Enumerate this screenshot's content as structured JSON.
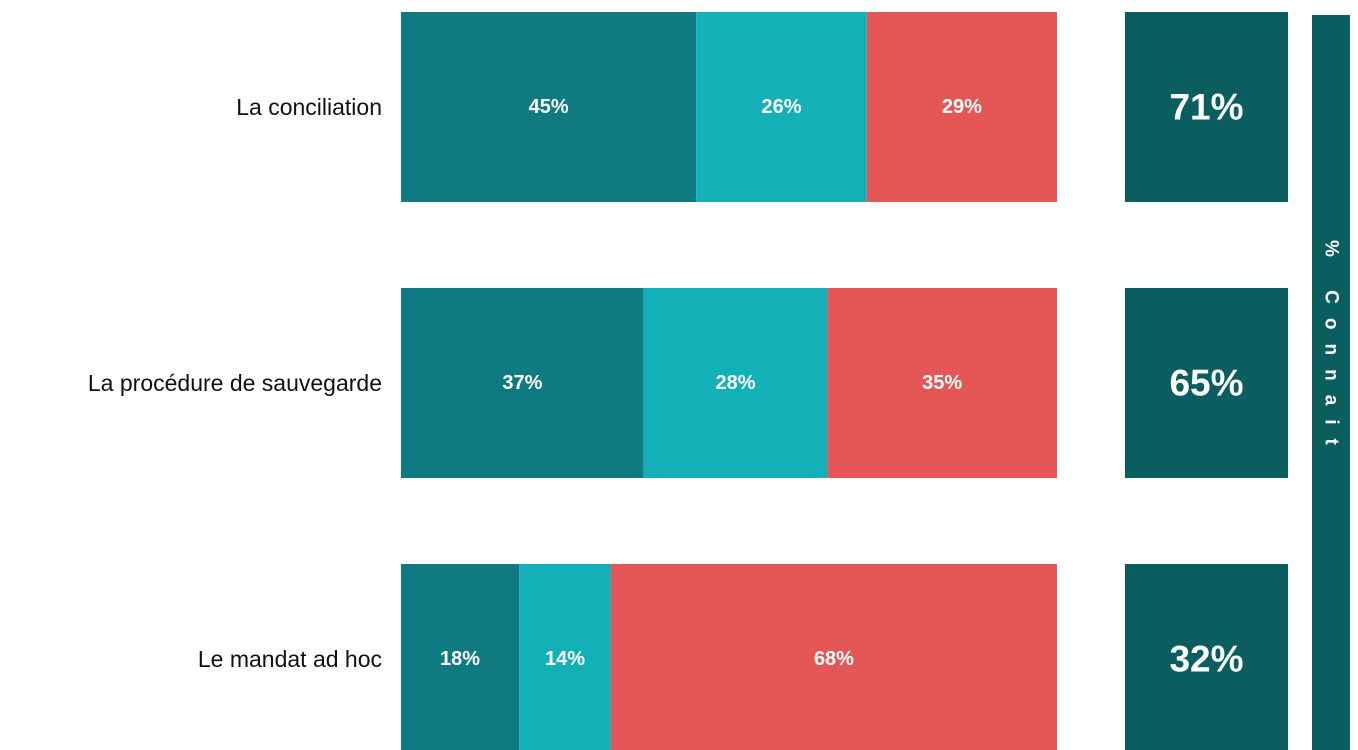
{
  "chart_data": {
    "type": "stacked-bar",
    "categories": [
      "La conciliation",
      "La procédure de sauvegarde",
      "Le mandat ad hoc"
    ],
    "series": [
      {
        "color": "#0f7a82",
        "values": [
          45,
          37,
          18
        ],
        "value_labels": [
          "45%",
          "37%",
          "18%"
        ]
      },
      {
        "color": "#13b0b8",
        "values": [
          26,
          28,
          14
        ],
        "value_labels": [
          "26%",
          "28%",
          "14%"
        ]
      },
      {
        "color": "#e45756",
        "values": [
          29,
          35,
          68
        ],
        "value_labels": [
          "29%",
          "35%",
          "68%"
        ]
      }
    ],
    "known": {
      "label": "% Connait",
      "color": "#0b5e60",
      "values": [
        71,
        65,
        32
      ],
      "value_labels": [
        "71%",
        "65%",
        "32%"
      ]
    }
  }
}
